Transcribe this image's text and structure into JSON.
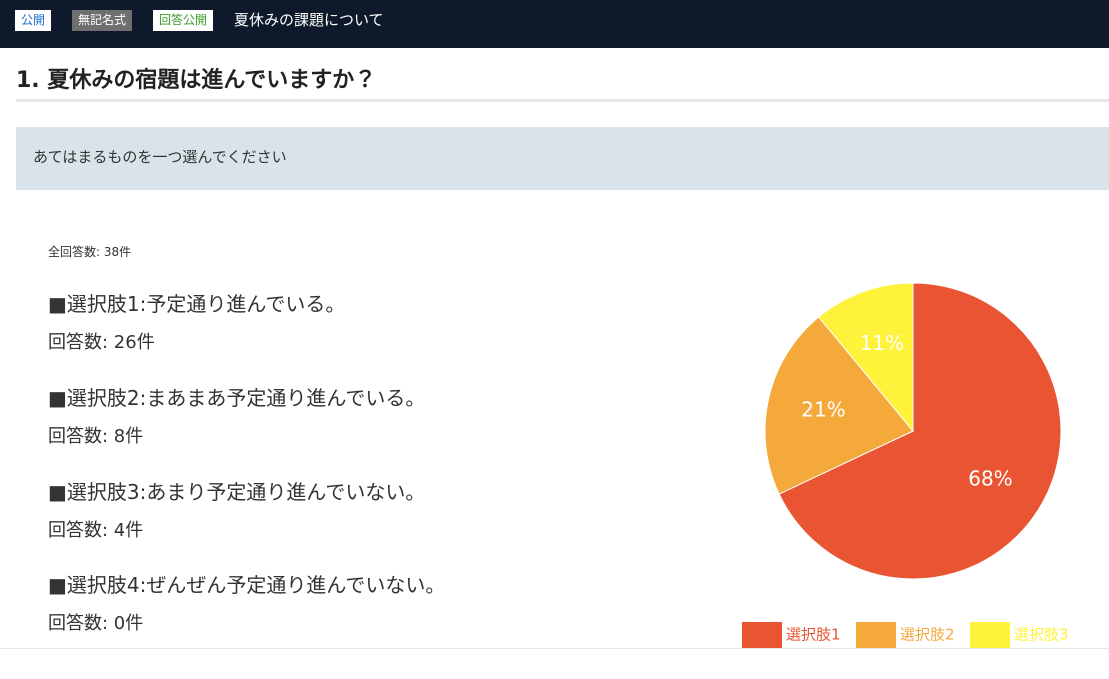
{
  "header": {
    "badges": [
      "公開",
      "無記名式",
      "回答公開"
    ],
    "title": "夏休みの課題について"
  },
  "question": {
    "title": "1. 夏休みの宿題は進んでいますか？",
    "instruction": "あてはまるものを一つ選んでください",
    "total": "全回答数: 38件",
    "options": [
      {
        "label": "■選択肢1:予定通り進んでいる。",
        "count": "回答数: 26件"
      },
      {
        "label": "■選択肢2:まあまあ予定通り進んでいる。",
        "count": "回答数: 8件"
      },
      {
        "label": "■選択肢3:あまり予定通り進んでいない。",
        "count": "回答数: 4件"
      },
      {
        "label": "■選択肢4:ぜんぜん予定通り進んでいない。",
        "count": "回答数: 0件"
      }
    ]
  },
  "chart": {
    "type": "pie",
    "categories": [
      "選択肢1",
      "選択肢2",
      "選択肢3"
    ],
    "values": [
      68,
      21,
      11
    ],
    "value_labels": [
      "68%",
      "21%",
      "11%"
    ],
    "colors": [
      "#e95532",
      "#f5a93b",
      "#fff23a"
    ]
  }
}
